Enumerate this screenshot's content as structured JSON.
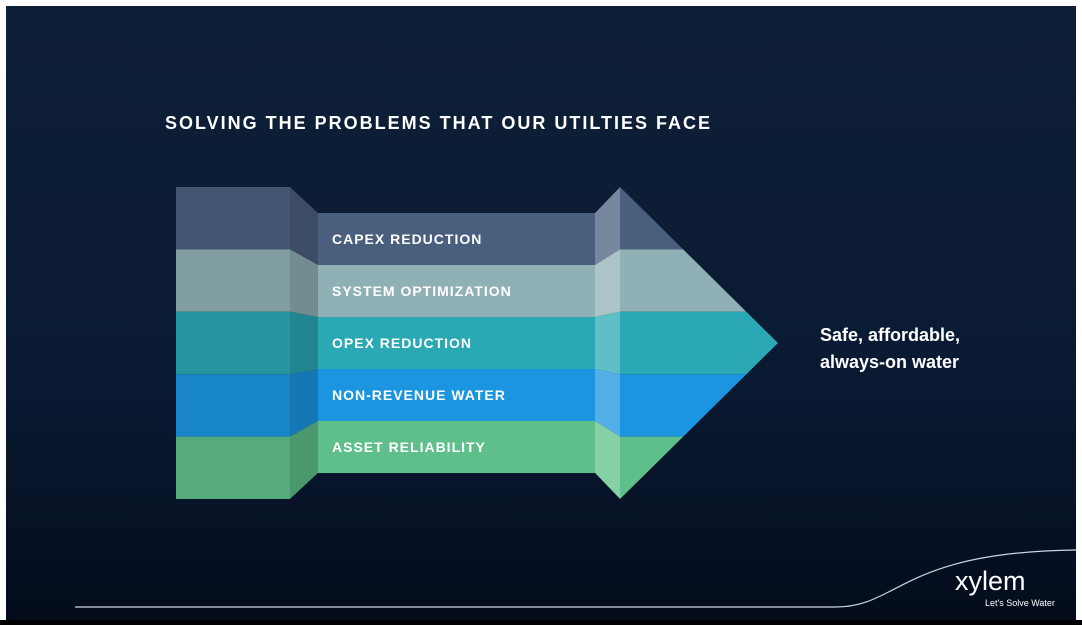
{
  "title": "SOLVING THE PROBLEMS THAT OUR UTILTIES FACE",
  "layers": [
    {
      "label": "CAPEX REDUCTION"
    },
    {
      "label": "SYSTEM OPTIMIZATION"
    },
    {
      "label": "OPEX REDUCTION"
    },
    {
      "label": "NON-REVENUE WATER"
    },
    {
      "label": "ASSET RELIABILITY"
    }
  ],
  "outcome": [
    "Safe, affordable,",
    "always-on water"
  ],
  "logo": {
    "name": "xylem",
    "tagline": "Let's Solve Water"
  }
}
